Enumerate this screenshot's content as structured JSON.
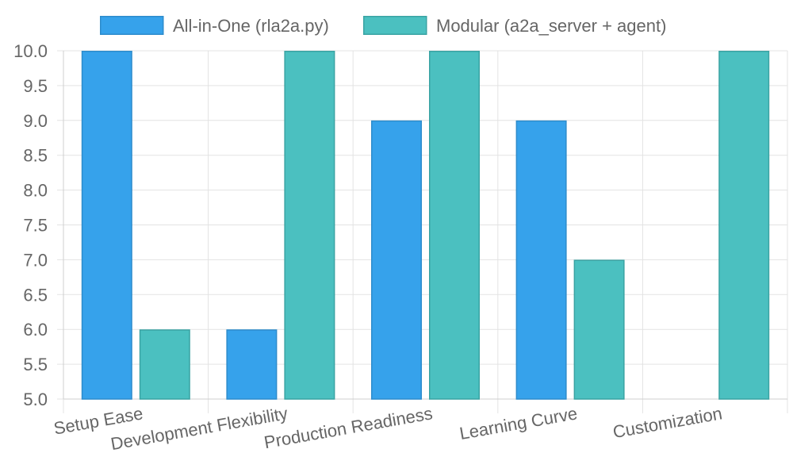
{
  "chart_data": {
    "type": "bar",
    "categories": [
      "Setup Ease",
      "Development Flexibility",
      "Production Readiness",
      "Learning Curve",
      "Customization"
    ],
    "series": [
      {
        "name": "All-in-One (rla2a.py)",
        "values": [
          10,
          6,
          9,
          9,
          null
        ],
        "color": "#36a2eb",
        "border_color": "#2d8ccc"
      },
      {
        "name": "Modular (a2a_server + agent)",
        "values": [
          6,
          10,
          10,
          7,
          10
        ],
        "color": "#4bc0c0",
        "border_color": "#3aa3a3"
      }
    ],
    "ylim": [
      5,
      10
    ],
    "yticks": [
      "5.0",
      "5.5",
      "6.0",
      "6.5",
      "7.0",
      "7.5",
      "8.0",
      "8.5",
      "9.0",
      "9.5",
      "10.0"
    ],
    "title": "",
    "xlabel": "",
    "ylabel": "",
    "grid": true,
    "legend_position": "top",
    "x_tick_rotation_deg": -10
  }
}
